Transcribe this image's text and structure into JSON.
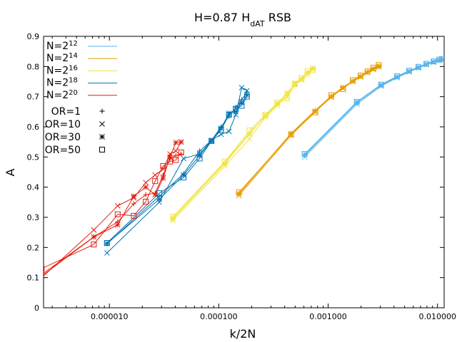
{
  "chart_data": {
    "type": "line",
    "title": {
      "base": "H=0.87 H",
      "sub": "dAT",
      "tail": " RSB"
    },
    "xlabel": "k/2N",
    "ylabel": "A",
    "xscale": "log",
    "xlim": [
      2.5e-06,
      0.0115
    ],
    "ylim": [
      0,
      0.9
    ],
    "xticks": [
      {
        "value": 1e-05,
        "label": "0.000010"
      },
      {
        "value": 0.0001,
        "label": "0.000100"
      },
      {
        "value": 0.001,
        "label": "0.001000"
      },
      {
        "value": 0.01,
        "label": "0.010000"
      }
    ],
    "yticks": [
      {
        "value": 0,
        "label": "0"
      },
      {
        "value": 0.1,
        "label": "0.1"
      },
      {
        "value": 0.2,
        "label": "0.2"
      },
      {
        "value": 0.3,
        "label": "0.3"
      },
      {
        "value": 0.4,
        "label": "0.4"
      },
      {
        "value": 0.5,
        "label": "0.5"
      },
      {
        "value": 0.6,
        "label": "0.6"
      },
      {
        "value": 0.7,
        "label": "0.7"
      },
      {
        "value": 0.8,
        "label": "0.8"
      },
      {
        "value": 0.9,
        "label": "0.9"
      }
    ],
    "legend_sizes": [
      {
        "base": "N=2",
        "exp": "12",
        "color": "#56b4e9"
      },
      {
        "base": "N=2",
        "exp": "14",
        "color": "#e69f00"
      },
      {
        "base": "N=2",
        "exp": "16",
        "color": "#f0e442"
      },
      {
        "base": "N=2",
        "exp": "18",
        "color": "#0072b2"
      },
      {
        "base": "N=2",
        "exp": "20",
        "color": "#e51e10"
      }
    ],
    "legend_markers": [
      {
        "label": "OR=1",
        "marker": "plus"
      },
      {
        "label": "OR=10",
        "marker": "cross"
      },
      {
        "label": "OR=30",
        "marker": "star"
      },
      {
        "label": "OR=50",
        "marker": "square"
      }
    ],
    "legend_position": "top-left",
    "series": [
      {
        "name": "N=2^12 OR=1",
        "color": "#56b4e9",
        "marker": "plus",
        "x": [
          0.00061,
          0.00183,
          0.00305,
          0.00427,
          0.0055,
          0.0067,
          0.0079,
          0.0092,
          0.0104,
          0.011
        ],
        "y": [
          0.505,
          0.68,
          0.738,
          0.765,
          0.784,
          0.797,
          0.807,
          0.815,
          0.821,
          0.823
        ]
      },
      {
        "name": "N=2^12 OR=10",
        "color": "#56b4e9",
        "marker": "cross",
        "x": [
          0.00061,
          0.00183,
          0.00305,
          0.00427,
          0.0055,
          0.0067,
          0.0079,
          0.0092,
          0.0104,
          0.011
        ],
        "y": [
          0.5,
          0.675,
          0.735,
          0.763,
          0.782,
          0.795,
          0.806,
          0.814,
          0.82,
          0.822
        ]
      },
      {
        "name": "N=2^12 OR=30",
        "color": "#56b4e9",
        "marker": "star",
        "x": [
          0.00061,
          0.00183,
          0.00305,
          0.00427,
          0.0055,
          0.0067,
          0.0079,
          0.0092,
          0.0104,
          0.011
        ],
        "y": [
          0.508,
          0.682,
          0.739,
          0.766,
          0.785,
          0.798,
          0.808,
          0.816,
          0.822,
          0.824
        ]
      },
      {
        "name": "N=2^12 OR=50",
        "color": "#56b4e9",
        "marker": "square",
        "x": [
          0.00061,
          0.00183,
          0.00305,
          0.00427,
          0.0055,
          0.0067,
          0.0079,
          0.0092,
          0.0104,
          0.011
        ],
        "y": [
          0.51,
          0.683,
          0.74,
          0.768,
          0.786,
          0.799,
          0.809,
          0.817,
          0.823,
          0.825
        ]
      },
      {
        "name": "N=2^14 OR=1",
        "color": "#e69f00",
        "marker": "plus",
        "x": [
          0.000153,
          0.000458,
          0.000763,
          0.00107,
          0.00137,
          0.00168,
          0.00198,
          0.00229,
          0.00259,
          0.0029
        ],
        "y": [
          0.38,
          0.578,
          0.655,
          0.702,
          0.732,
          0.752,
          0.768,
          0.782,
          0.793,
          0.8
        ]
      },
      {
        "name": "N=2^14 OR=10",
        "color": "#e69f00",
        "marker": "cross",
        "x": [
          0.000153,
          0.000458,
          0.000763,
          0.00107,
          0.00137,
          0.00168,
          0.00198,
          0.00229,
          0.00259,
          0.0029
        ],
        "y": [
          0.372,
          0.572,
          0.65,
          0.698,
          0.728,
          0.75,
          0.765,
          0.78,
          0.79,
          0.798
        ]
      },
      {
        "name": "N=2^14 OR=30",
        "color": "#e69f00",
        "marker": "star",
        "x": [
          0.000153,
          0.000458,
          0.000763,
          0.00107,
          0.00137,
          0.00168,
          0.00198,
          0.00229,
          0.00259,
          0.0029
        ],
        "y": [
          0.378,
          0.576,
          0.652,
          0.7,
          0.73,
          0.751,
          0.767,
          0.781,
          0.792,
          0.802
        ]
      },
      {
        "name": "N=2^14 OR=50",
        "color": "#e69f00",
        "marker": "square",
        "x": [
          0.000153,
          0.000458,
          0.000763,
          0.00107,
          0.00137,
          0.00168,
          0.00198,
          0.00229,
          0.00259,
          0.0029
        ],
        "y": [
          0.383,
          0.575,
          0.648,
          0.705,
          0.725,
          0.755,
          0.77,
          0.784,
          0.796,
          0.805
        ]
      },
      {
        "name": "N=2^16 OR=1",
        "color": "#f0e442",
        "marker": "plus",
        "x": [
          3.81e-05,
          0.000114,
          0.000191,
          0.000267,
          0.000343,
          0.00042,
          0.000496,
          0.000572,
          0.000648,
          0.000725
        ],
        "y": [
          0.3,
          0.482,
          0.58,
          0.635,
          0.675,
          0.708,
          0.738,
          0.76,
          0.778,
          0.792
        ]
      },
      {
        "name": "N=2^16 OR=10",
        "color": "#f0e442",
        "marker": "cross",
        "x": [
          3.81e-05,
          0.000114,
          0.000191,
          0.000267,
          0.000343,
          0.00042,
          0.000496,
          0.000572,
          0.000648,
          0.000725
        ],
        "y": [
          0.29,
          0.47,
          0.56,
          0.632,
          0.67,
          0.7,
          0.74,
          0.755,
          0.772,
          0.79
        ]
      },
      {
        "name": "N=2^16 OR=30",
        "color": "#f0e442",
        "marker": "star",
        "x": [
          3.81e-05,
          0.000114,
          0.000191,
          0.000267,
          0.000343,
          0.00042,
          0.000496,
          0.000572,
          0.000648,
          0.000725
        ],
        "y": [
          0.295,
          0.478,
          0.575,
          0.638,
          0.678,
          0.712,
          0.745,
          0.758,
          0.78,
          0.795
        ]
      },
      {
        "name": "N=2^16 OR=50",
        "color": "#f0e442",
        "marker": "square",
        "x": [
          3.81e-05,
          0.000114,
          0.000191,
          0.000267,
          0.000343,
          0.00042,
          0.000496,
          0.000572,
          0.000648,
          0.000725
        ],
        "y": [
          0.302,
          0.485,
          0.588,
          0.64,
          0.68,
          0.695,
          0.742,
          0.762,
          0.785,
          0.788
        ]
      },
      {
        "name": "N=2^18 OR=1",
        "color": "#0072b2",
        "marker": "plus",
        "x": [
          9.5e-06,
          2.86e-05,
          4.77e-05,
          6.68e-05,
          8.58e-05,
          0.000105,
          0.000124,
          0.000143,
          0.000162,
          0.000181
        ],
        "y": [
          0.212,
          0.37,
          0.445,
          0.52,
          0.555,
          0.6,
          0.635,
          0.665,
          0.69,
          0.715
        ]
      },
      {
        "name": "N=2^18 OR=10",
        "color": "#0072b2",
        "marker": "cross",
        "x": [
          9.5e-06,
          2.86e-05,
          4.77e-05,
          6.68e-05,
          8.58e-05,
          0.000105,
          0.000124,
          0.000143,
          0.000162,
          0.000181
        ],
        "y": [
          0.182,
          0.35,
          0.495,
          0.51,
          0.555,
          0.575,
          0.585,
          0.64,
          0.73,
          0.72
        ]
      },
      {
        "name": "N=2^18 OR=30",
        "color": "#0072b2",
        "marker": "star",
        "x": [
          9.5e-06,
          2.86e-05,
          4.77e-05,
          6.68e-05,
          8.58e-05,
          0.000105,
          0.000124,
          0.000143,
          0.000162,
          0.000181
        ],
        "y": [
          0.213,
          0.36,
          0.44,
          0.505,
          0.552,
          0.595,
          0.645,
          0.65,
          0.68,
          0.705
        ]
      },
      {
        "name": "N=2^18 OR=50",
        "color": "#0072b2",
        "marker": "square",
        "x": [
          9.5e-06,
          2.86e-05,
          4.77e-05,
          6.68e-05,
          8.58e-05,
          0.000105,
          0.000124,
          0.000143,
          0.000162,
          0.000181
        ],
        "y": [
          0.215,
          0.38,
          0.432,
          0.495,
          0.553,
          0.59,
          0.64,
          0.66,
          0.67,
          0.7
        ]
      },
      {
        "name": "N=2^20 OR=1",
        "color": "#e51e10",
        "marker": "plus",
        "x": [
          2.4e-06,
          7.2e-06,
          1.19e-05,
          1.67e-05,
          2.15e-05,
          2.62e-05,
          3.1e-05,
          3.58e-05,
          4.05e-05,
          4.53e-05
        ],
        "y": [
          0.105,
          0.235,
          0.285,
          0.345,
          0.375,
          0.38,
          0.44,
          0.495,
          0.505,
          0.51
        ]
      },
      {
        "name": "N=2^20 OR=10",
        "color": "#e51e10",
        "marker": "cross",
        "x": [
          2.4e-06,
          7.2e-06,
          1.19e-05,
          1.67e-05,
          2.15e-05,
          2.62e-05,
          3.1e-05,
          3.58e-05,
          4.05e-05,
          4.53e-05
        ],
        "y": [
          0.1,
          0.258,
          0.338,
          0.365,
          0.415,
          0.44,
          0.46,
          0.51,
          0.52,
          0.55
        ]
      },
      {
        "name": "N=2^20 OR=30",
        "color": "#e51e10",
        "marker": "star",
        "x": [
          2.4e-06,
          7.2e-06,
          1.19e-05,
          1.67e-05,
          2.15e-05,
          2.62e-05,
          3.1e-05,
          3.58e-05,
          4.05e-05,
          4.53e-05
        ],
        "y": [
          0.11,
          0.235,
          0.275,
          0.37,
          0.4,
          0.375,
          0.43,
          0.5,
          0.548,
          0.55
        ]
      },
      {
        "name": "N=2^20 OR=50",
        "color": "#e51e10",
        "marker": "square",
        "x": [
          2.4e-06,
          7.2e-06,
          1.19e-05,
          1.67e-05,
          2.15e-05,
          2.62e-05,
          3.1e-05,
          3.58e-05,
          4.05e-05,
          4.53e-05
        ],
        "y": [
          0.13,
          0.21,
          0.31,
          0.305,
          0.352,
          0.42,
          0.47,
          0.485,
          0.49,
          0.515
        ]
      }
    ]
  }
}
